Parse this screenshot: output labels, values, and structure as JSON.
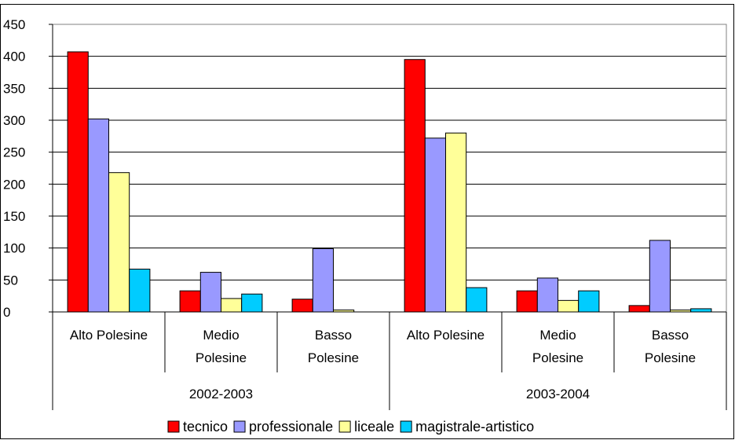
{
  "colors": {
    "tecnico": "#ff0000",
    "professionale": "#9999ff",
    "liceale": "#ffff99",
    "magistrale-artistico": "#00ccff",
    "plot_background": "#ffffff",
    "grid": "#000000"
  },
  "chart_data": {
    "type": "bar",
    "title": "",
    "xlabel": "",
    "ylabel": "",
    "ylim": [
      0,
      450
    ],
    "yticks": [
      0,
      50,
      100,
      150,
      200,
      250,
      300,
      350,
      400,
      450
    ],
    "grid": true,
    "legend_position": "bottom",
    "groups": [
      "2002-2003",
      "2003-2004"
    ],
    "categories": [
      [
        "Alto Polesine"
      ],
      [
        "Medio",
        "Polesine"
      ],
      [
        "Basso",
        "Polesine"
      ],
      [
        "Alto Polesine"
      ],
      [
        "Medio",
        "Polesine"
      ],
      [
        "Basso",
        "Polesine"
      ]
    ],
    "series": [
      {
        "name": "tecnico",
        "values": [
          407,
          33,
          20,
          395,
          33,
          10
        ]
      },
      {
        "name": "professionale",
        "values": [
          302,
          62,
          99,
          272,
          53,
          112
        ]
      },
      {
        "name": "liceale",
        "values": [
          218,
          21,
          3,
          280,
          18,
          3
        ]
      },
      {
        "name": "magistrale-artistico",
        "values": [
          67,
          28,
          0,
          38,
          33,
          5
        ]
      }
    ]
  }
}
